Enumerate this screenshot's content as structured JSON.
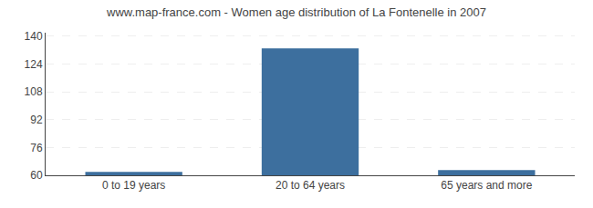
{
  "chart_data": {
    "type": "bar",
    "title": "www.map-france.com - Women age distribution of La Fontenelle in 2007",
    "categories": [
      "0 to 19 years",
      "20 to 64 years",
      "65 years and more"
    ],
    "values": [
      62,
      133,
      63
    ],
    "color": "#3d6f9e",
    "ylim": [
      60,
      142
    ],
    "yticks": [
      60,
      76,
      92,
      108,
      124,
      140
    ],
    "grid": true
  }
}
